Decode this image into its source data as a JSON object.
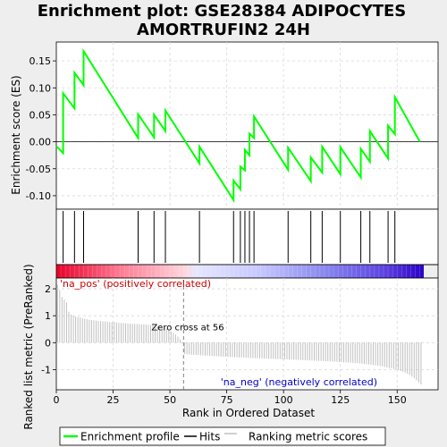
{
  "chart_data": {
    "type": "line",
    "title": "Enrichment plot: GSE28384 ADIPOCYTES AMORTRUFIN2 24H",
    "top_panel": {
      "ylabel": "Enrichment score (ES)",
      "ylim": [
        -0.125,
        0.185
      ],
      "yticks": [
        -0.1,
        -0.05,
        0.0,
        0.05,
        0.1,
        0.15
      ],
      "ytick_labels": [
        "-0.10",
        "-0.05",
        "0.00",
        "0.05",
        "0.10",
        "0.15"
      ],
      "grid": true,
      "series": [
        {
          "name": "Enrichment profile",
          "color": "#00ff00",
          "x": [
            0,
            3,
            3,
            8,
            8,
            12,
            12,
            36,
            36,
            43,
            43,
            48,
            48,
            63,
            63,
            78,
            78,
            81,
            81,
            83,
            83,
            85,
            85,
            87,
            87,
            102,
            102,
            112,
            112,
            117,
            117,
            125,
            125,
            134,
            134,
            138,
            138,
            146,
            146,
            149,
            149,
            160
          ],
          "y": [
            -0.008,
            -0.021,
            0.09,
            0.062,
            0.128,
            0.105,
            0.168,
            0.007,
            0.051,
            0.008,
            0.05,
            0.02,
            0.058,
            -0.04,
            -0.009,
            -0.108,
            -0.072,
            -0.088,
            -0.046,
            -0.053,
            -0.015,
            -0.025,
            0.015,
            0.007,
            0.047,
            -0.052,
            -0.011,
            -0.073,
            -0.029,
            -0.057,
            -0.009,
            -0.06,
            -0.01,
            -0.066,
            -0.013,
            -0.037,
            0.02,
            -0.031,
            0.03,
            0.014,
            0.083,
            0.0
          ]
        }
      ]
    },
    "hits": {
      "name": "Hits",
      "positions": [
        3,
        8,
        12,
        36,
        43,
        48,
        63,
        78,
        81,
        83,
        85,
        87,
        102,
        112,
        117,
        125,
        134,
        138,
        146,
        149
      ]
    },
    "bottom_panel": {
      "ylabel": "Ranked list metric (PreRanked)",
      "xlabel": "Rank in Ordered Dataset",
      "ylim": [
        -1.75,
        2.4
      ],
      "yticks": [
        -1,
        0,
        1,
        2
      ],
      "ytick_labels": [
        "-1",
        "0",
        "1",
        "2"
      ],
      "xlim": [
        0,
        168
      ],
      "xticks": [
        0,
        25,
        50,
        75,
        100,
        125,
        150
      ],
      "xtick_labels": [
        "0",
        "25",
        "50",
        "75",
        "100",
        "125",
        "150"
      ],
      "series_name": "Ranking metric scores",
      "metric_values": [
        2.15,
        1.95,
        1.7,
        1.6,
        1.5,
        1.15,
        1.05,
        1.0,
        0.97,
        0.95,
        0.93,
        0.91,
        0.89,
        0.87,
        0.85,
        0.84,
        0.83,
        0.82,
        0.81,
        0.8,
        0.79,
        0.79,
        0.78,
        0.77,
        0.76,
        0.76,
        0.75,
        0.74,
        0.73,
        0.73,
        0.72,
        0.71,
        0.71,
        0.7,
        0.7,
        0.69,
        0.69,
        0.68,
        0.68,
        0.67,
        0.66,
        0.65,
        0.64,
        0.63,
        0.62,
        0.6,
        0.58,
        0.55,
        0.52,
        0.48,
        0.43,
        0.37,
        0.3,
        0.22,
        0.12,
        0.03,
        -0.42,
        -0.43,
        -0.44,
        -0.45,
        -0.45,
        -0.46,
        -0.46,
        -0.47,
        -0.47,
        -0.48,
        -0.48,
        -0.49,
        -0.49,
        -0.5,
        -0.5,
        -0.51,
        -0.51,
        -0.52,
        -0.52,
        -0.52,
        -0.53,
        -0.53,
        -0.54,
        -0.54,
        -0.55,
        -0.55,
        -0.55,
        -0.56,
        -0.56,
        -0.57,
        -0.57,
        -0.57,
        -0.58,
        -0.58,
        -0.58,
        -0.59,
        -0.59,
        -0.6,
        -0.6,
        -0.6,
        -0.61,
        -0.61,
        -0.61,
        -0.62,
        -0.62,
        -0.62,
        -0.63,
        -0.63,
        -0.63,
        -0.64,
        -0.64,
        -0.64,
        -0.65,
        -0.65,
        -0.66,
        -0.66,
        -0.66,
        -0.67,
        -0.67,
        -0.68,
        -0.68,
        -0.68,
        -0.69,
        -0.69,
        -0.7,
        -0.7,
        -0.71,
        -0.71,
        -0.72,
        -0.72,
        -0.73,
        -0.73,
        -0.74,
        -0.74,
        -0.75,
        -0.76,
        -0.76,
        -0.77,
        -0.78,
        -0.79,
        -0.8,
        -0.81,
        -0.82,
        -0.83,
        -0.84,
        -0.85,
        -0.87,
        -0.88,
        -0.9,
        -0.92,
        -0.94,
        -0.96,
        -0.98,
        -1.0,
        -1.02,
        -1.05,
        -1.08,
        -1.11,
        -1.15,
        -1.2,
        -1.26,
        -1.32,
        -1.4,
        -1.48,
        -1.55
      ]
    },
    "annotations": {
      "pos_label": "'na_pos' (positively correlated)",
      "neg_label": "'na_neg' (negatively correlated)",
      "zero_cross": "Zero cross at 56",
      "zero_cross_rank": 56
    },
    "legend": {
      "placement": "bottom",
      "items": [
        {
          "label": "Enrichment profile",
          "color": "#00ff00"
        },
        {
          "label": "Hits",
          "color": "#000000"
        },
        {
          "label": "Ranking metric scores",
          "color": "#c0c0c0"
        }
      ]
    },
    "colors": {
      "pos_label": "#cc0000",
      "neg_label": "#0000cc",
      "metric_bars": "#c0c0c0",
      "zero_cross_line": "#808080"
    }
  }
}
